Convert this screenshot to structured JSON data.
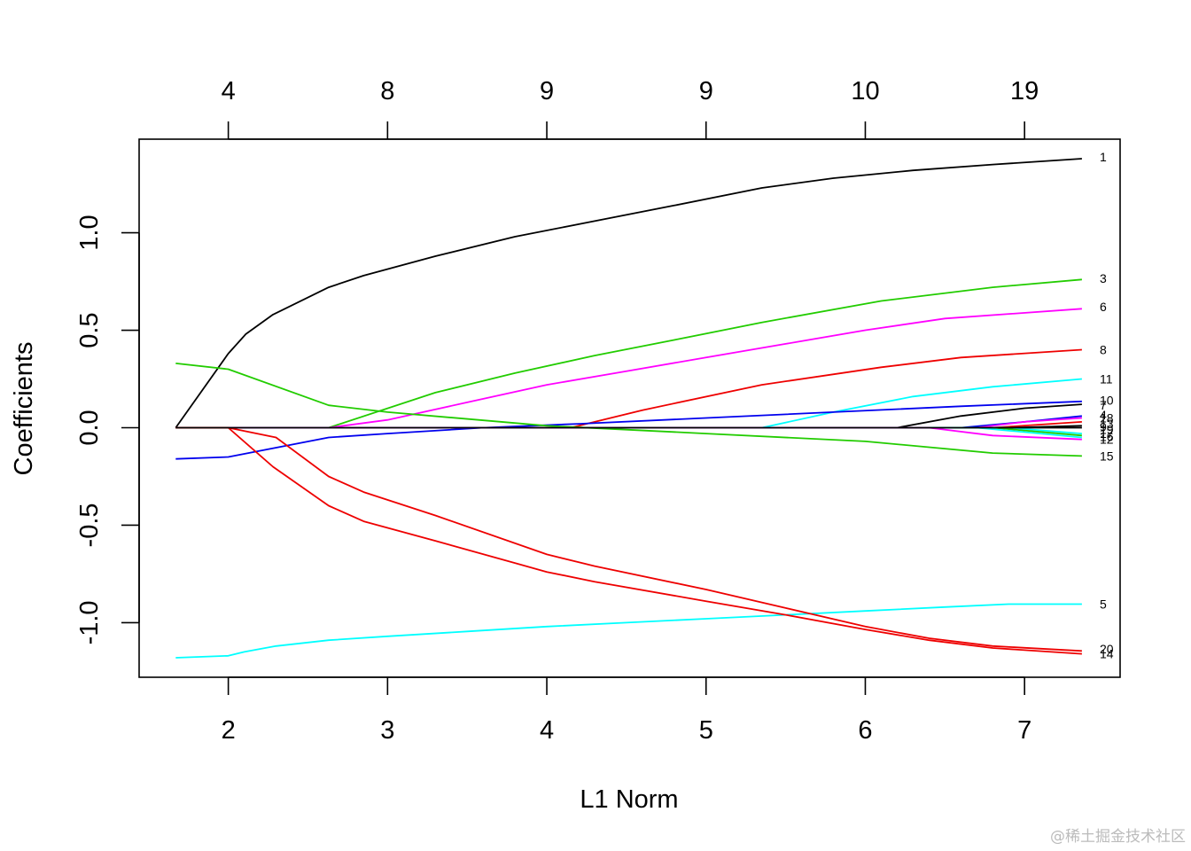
{
  "chart_data": {
    "type": "line",
    "title": "",
    "xlabel": "L1 Norm",
    "ylabel": "Coefficients",
    "xlim": [
      1.44,
      7.6
    ],
    "ylim": [
      -1.28,
      1.48
    ],
    "x_ticks": [
      2,
      3,
      4,
      5,
      6,
      7
    ],
    "y_ticks": [
      -1.0,
      -0.5,
      0.0,
      0.5,
      1.0
    ],
    "y_tick_labels": [
      "-1.0",
      "-0.5",
      "0.0",
      "0.5",
      "1.0"
    ],
    "top_axis": {
      "positions": [
        2,
        3,
        4,
        5,
        6,
        7
      ],
      "labels": [
        "4",
        "8",
        "9",
        "9",
        "10",
        "19"
      ]
    },
    "grid": false,
    "series": [
      {
        "name": "1",
        "color": "#000000",
        "x": [
          1.67,
          2.0,
          2.11,
          2.28,
          2.63,
          2.85,
          3.3,
          3.8,
          4.3,
          4.8,
          5.35,
          5.8,
          6.3,
          6.8,
          7.36
        ],
        "y": [
          0.0,
          0.38,
          0.48,
          0.58,
          0.72,
          0.78,
          0.88,
          0.98,
          1.06,
          1.14,
          1.23,
          1.28,
          1.32,
          1.35,
          1.38
        ]
      },
      {
        "name": "3",
        "color": "#22cc00",
        "x": [
          1.67,
          2.63,
          3.3,
          3.8,
          4.3,
          4.8,
          5.35,
          6.1,
          6.8,
          7.36
        ],
        "y": [
          0.0,
          0.0,
          0.18,
          0.28,
          0.37,
          0.45,
          0.54,
          0.65,
          0.72,
          0.76
        ]
      },
      {
        "name": "6",
        "color": "#ff00ff",
        "x": [
          1.67,
          2.63,
          3.0,
          3.5,
          4.0,
          4.5,
          5.0,
          5.5,
          6.0,
          6.5,
          7.36
        ],
        "y": [
          0.0,
          0.0,
          0.04,
          0.13,
          0.22,
          0.29,
          0.36,
          0.43,
          0.5,
          0.56,
          0.61
        ]
      },
      {
        "name": "8",
        "color": "#ee0000",
        "x": [
          1.67,
          4.15,
          4.6,
          5.35,
          6.1,
          6.6,
          7.36
        ],
        "y": [
          0.0,
          0.0,
          0.09,
          0.22,
          0.31,
          0.36,
          0.4
        ]
      },
      {
        "name": "11",
        "color": "#00ffff",
        "x": [
          1.67,
          5.35,
          5.8,
          6.3,
          6.8,
          7.36
        ],
        "y": [
          0.0,
          0.0,
          0.08,
          0.16,
          0.21,
          0.25
        ]
      },
      {
        "name": "10",
        "color": "#0000ee",
        "x": [
          1.67,
          2.0,
          2.63,
          3.0,
          3.6,
          4.2,
          5.0,
          5.8,
          6.6,
          7.36
        ],
        "y": [
          -0.16,
          -0.15,
          -0.05,
          -0.03,
          0.0,
          0.02,
          0.05,
          0.08,
          0.11,
          0.135
        ]
      },
      {
        "name": "7",
        "color": "#000000",
        "x": [
          1.67,
          6.2,
          6.6,
          7.0,
          7.36
        ],
        "y": [
          0.0,
          0.0,
          0.06,
          0.1,
          0.12
        ]
      },
      {
        "name": "4",
        "color": "#0000ee",
        "x": [
          1.67,
          6.6,
          7.0,
          7.36
        ],
        "y": [
          0.0,
          0.0,
          0.03,
          0.06
        ]
      },
      {
        "name": "18",
        "color": "#ff00ff",
        "x": [
          1.67,
          6.7,
          7.0,
          7.36
        ],
        "y": [
          0.0,
          0.0,
          0.03,
          0.05
        ]
      },
      {
        "name": "13",
        "color": "#ee0000",
        "x": [
          1.67,
          6.8,
          7.36
        ],
        "y": [
          0.0,
          0.0,
          0.03
        ]
      },
      {
        "name": "9",
        "color": "#000000",
        "x": [
          1.67,
          6.9,
          7.36
        ],
        "y": [
          0.0,
          0.0,
          0.01
        ]
      },
      {
        "name": "19",
        "color": "#00ffff",
        "x": [
          1.67,
          6.9,
          7.36
        ],
        "y": [
          0.0,
          0.0,
          -0.03
        ]
      },
      {
        "name": "17",
        "color": "#22cc00",
        "x": [
          1.67,
          6.8,
          7.36
        ],
        "y": [
          0.0,
          0.0,
          -0.04
        ]
      },
      {
        "name": "16",
        "color": "#00ffff",
        "x": [
          1.67,
          6.7,
          7.36
        ],
        "y": [
          0.0,
          0.0,
          -0.05
        ]
      },
      {
        "name": "12",
        "color": "#ff00ff",
        "x": [
          1.67,
          6.4,
          6.8,
          7.36
        ],
        "y": [
          0.0,
          0.0,
          -0.04,
          -0.06
        ]
      },
      {
        "name": "15",
        "color": "#22cc00",
        "x": [
          1.67,
          2.0,
          2.63,
          3.0,
          4.0,
          5.0,
          6.0,
          6.4,
          6.8,
          7.36
        ],
        "y": [
          0.33,
          0.3,
          0.115,
          0.08,
          0.01,
          -0.03,
          -0.07,
          -0.1,
          -0.13,
          -0.145
        ]
      },
      {
        "name": "5",
        "color": "#00ffff",
        "x": [
          1.67,
          2.0,
          2.1,
          2.3,
          2.63,
          3.0,
          3.5,
          4.0,
          4.5,
          5.0,
          5.5,
          6.0,
          6.5,
          6.9,
          7.36
        ],
        "y": [
          -1.18,
          -1.17,
          -1.15,
          -1.12,
          -1.09,
          -1.07,
          -1.045,
          -1.02,
          -1.0,
          -0.98,
          -0.96,
          -0.94,
          -0.92,
          -0.905,
          -0.905
        ]
      },
      {
        "name": "20",
        "color": "#ee0000",
        "x": [
          1.67,
          2.0,
          2.3,
          2.63,
          2.85,
          3.3,
          4.0,
          4.3,
          5.0,
          5.5,
          6.0,
          6.4,
          6.8,
          7.36
        ],
        "y": [
          0.0,
          0.0,
          -0.05,
          -0.25,
          -0.33,
          -0.45,
          -0.65,
          -0.71,
          -0.83,
          -0.925,
          -1.02,
          -1.08,
          -1.12,
          -1.145
        ]
      },
      {
        "name": "14",
        "color": "#ee0000",
        "x": [
          1.67,
          2.0,
          2.28,
          2.63,
          2.85,
          3.3,
          4.0,
          4.3,
          5.0,
          5.5,
          6.0,
          6.4,
          6.8,
          7.36
        ],
        "y": [
          0.0,
          0.0,
          -0.2,
          -0.4,
          -0.48,
          -0.58,
          -0.74,
          -0.79,
          -0.89,
          -0.96,
          -1.035,
          -1.09,
          -1.13,
          -1.16
        ]
      },
      {
        "name": "",
        "color": "#000000",
        "x": [
          1.67,
          7.36
        ],
        "y": [
          0.0,
          0.0
        ]
      }
    ],
    "end_labels": [
      {
        "text": "1",
        "y": 1.39
      },
      {
        "text": "3",
        "y": 0.765
      },
      {
        "text": "6",
        "y": 0.62
      },
      {
        "text": "8",
        "y": 0.4
      },
      {
        "text": "11",
        "y": 0.25
      },
      {
        "text": "10",
        "y": 0.14
      },
      {
        "text": "7",
        "y": 0.115
      },
      {
        "text": "4",
        "y": 0.065
      },
      {
        "text": "18",
        "y": 0.05
      },
      {
        "text": "13",
        "y": 0.02
      },
      {
        "text": "9",
        "y": 0.005
      },
      {
        "text": "19",
        "y": -0.01
      },
      {
        "text": "17",
        "y": -0.03
      },
      {
        "text": "16",
        "y": -0.045
      },
      {
        "text": "12",
        "y": -0.06
      },
      {
        "text": "15",
        "y": -0.145
      },
      {
        "text": "5",
        "y": -0.905
      },
      {
        "text": "20",
        "y": -1.135
      },
      {
        "text": "14",
        "y": -1.16
      }
    ]
  },
  "watermark": "@稀土掘金技术社区"
}
